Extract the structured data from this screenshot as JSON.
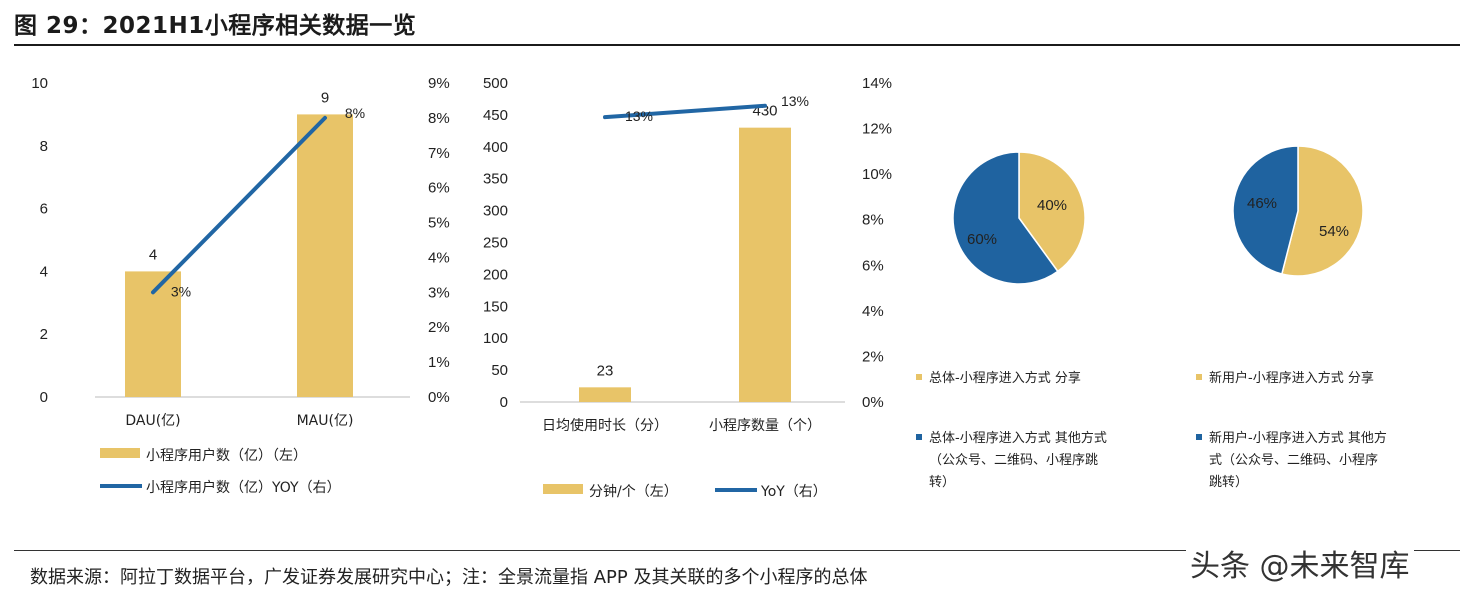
{
  "title": "图 29：2021H1小程序相关数据一览",
  "source": "数据来源：阿拉丁数据平台，广发证券发展研究中心；注：全景流量指 APP 及其关联的多个小程序的总体",
  "watermark": "头条 @未来智库",
  "colors": {
    "bar": "#E8C468",
    "line": "#2166A4",
    "pie_blue": "#1F63A0",
    "pie_gold": "#E8C468"
  },
  "chart_data": [
    {
      "type": "bar",
      "categories": [
        "DAU(亿)",
        "MAU(亿)"
      ],
      "series": [
        {
          "name": "小程序用户数（亿）（左）",
          "type": "bar",
          "values": [
            4,
            9
          ],
          "labels": [
            "4",
            "9"
          ]
        },
        {
          "name": "小程序用户数（亿）YOY（右）",
          "type": "line",
          "axis": "right",
          "values": [
            3,
            8
          ],
          "labels": [
            "3%",
            "8%"
          ]
        }
      ],
      "ylim": [
        0,
        10
      ],
      "yticks": [
        "0",
        "2",
        "4",
        "6",
        "8",
        "10"
      ],
      "y2lim": [
        0,
        9
      ],
      "y2ticks": [
        "0%",
        "1%",
        "2%",
        "3%",
        "4%",
        "5%",
        "6%",
        "7%",
        "8%",
        "9%"
      ],
      "legend": "bottom",
      "grid": false
    },
    {
      "type": "bar",
      "categories": [
        "日均使用时长（分）",
        "小程序数量（个）"
      ],
      "series": [
        {
          "name": "分钟/个（左）",
          "type": "bar",
          "values": [
            23,
            430
          ],
          "labels": [
            "23",
            "430"
          ]
        },
        {
          "name": "YoY（右）",
          "type": "line",
          "axis": "right",
          "values": [
            12.5,
            13
          ],
          "labels": [
            "13%",
            "13%"
          ]
        }
      ],
      "ylim": [
        0,
        500
      ],
      "yticks": [
        "0",
        "50",
        "100",
        "150",
        "200",
        "250",
        "300",
        "350",
        "400",
        "450",
        "500"
      ],
      "y2lim": [
        0,
        14
      ],
      "y2ticks": [
        "0%",
        "2%",
        "4%",
        "6%",
        "8%",
        "10%",
        "12%",
        "14%"
      ],
      "legend": "bottom",
      "grid": false
    },
    {
      "type": "pie",
      "slices": [
        {
          "label": "40%",
          "value": 40,
          "legend": "总体-小程序进入方式 分享",
          "color": "gold"
        },
        {
          "label": "60%",
          "value": 60,
          "legend": "总体-小程序进入方式 其他方式（公众号、二维码、小程序跳转）",
          "color": "blue"
        }
      ],
      "legend_lines": {
        "gold": [
          "总体-小程序进入方式 分享"
        ],
        "blue": [
          "总体-小程序进入方式 其他方式",
          "（公众号、二维码、小程序跳",
          "转）"
        ]
      }
    },
    {
      "type": "pie",
      "slices": [
        {
          "label": "54%",
          "value": 54,
          "legend": "新用户-小程序进入方式 分享",
          "color": "gold"
        },
        {
          "label": "46%",
          "value": 46,
          "legend": "新用户-小程序进入方式 其他方式（公众号、二维码、小程序跳转）",
          "color": "blue"
        }
      ],
      "legend_lines": {
        "gold": [
          "新用户-小程序进入方式 分享"
        ],
        "blue": [
          "新用户-小程序进入方式 其他方",
          "式（公众号、二维码、小程序",
          "跳转）"
        ]
      }
    }
  ]
}
